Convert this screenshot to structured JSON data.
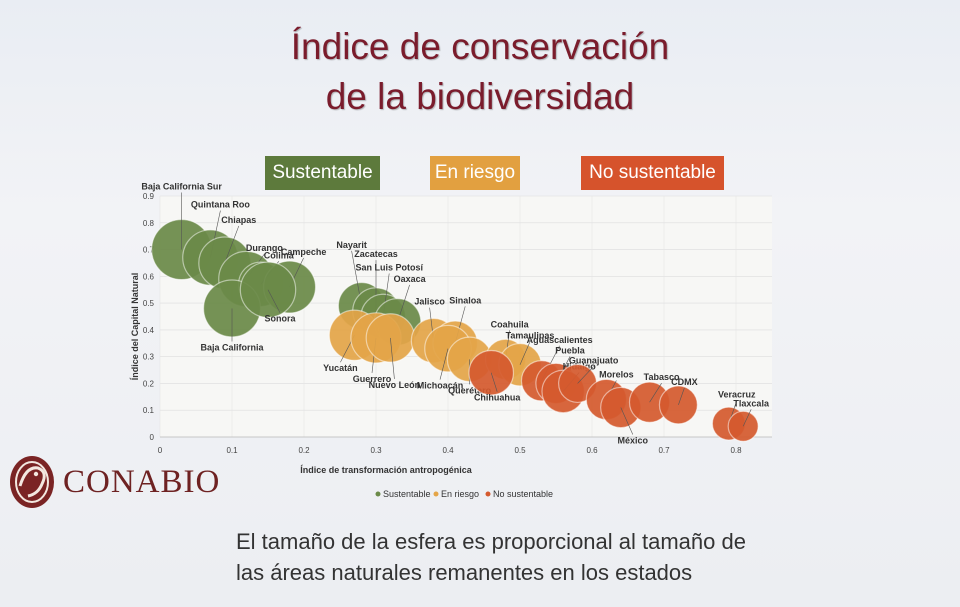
{
  "title": {
    "line1": "Índice de conservación",
    "line2": "de la biodiversidad"
  },
  "badges": [
    {
      "label": "Sustentable",
      "color": "#5d7a3c"
    },
    {
      "label": "En riesgo",
      "color": "#e2a040"
    },
    {
      "label": "No sustentable",
      "color": "#d6532c"
    }
  ],
  "caption": {
    "line1": "El tamaño de la esfera es proporcional al tamaño de",
    "line2": "las áreas naturales remanentes en los estados"
  },
  "logo": {
    "text": "CONABIO"
  },
  "chart_data": {
    "type": "scatter",
    "xlabel": "Índice de transformación antropogénica",
    "ylabel": "Índice del Capital Natural",
    "xlim": [
      0,
      0.85
    ],
    "ylim": [
      0,
      0.9
    ],
    "x_ticks": [
      "0",
      "0.1",
      "0.2",
      "0.3",
      "0.4",
      "0.5",
      "0.6",
      "0.7",
      "0.8"
    ],
    "y_ticks": [
      "0",
      "0.1",
      "0.2",
      "0.3",
      "0.4",
      "0.5",
      "0.6",
      "0.7",
      "0.8",
      "0.9"
    ],
    "legend": [
      "Sustentable",
      "En riesgo",
      "No sustentable"
    ],
    "colors": {
      "Sustentable": "#6b8a48",
      "En riesgo": "#e4a548",
      "No sustentable": "#d55a2e"
    },
    "points": [
      {
        "name": "Baja California Sur",
        "x": 0.03,
        "y": 0.7,
        "size": 1.0,
        "category": "Sustentable"
      },
      {
        "name": "Quintana Roo",
        "x": 0.07,
        "y": 0.67,
        "size": 0.85,
        "category": "Sustentable"
      },
      {
        "name": "Chiapas",
        "x": 0.09,
        "y": 0.65,
        "size": 0.75,
        "category": "Sustentable"
      },
      {
        "name": "Durango",
        "x": 0.12,
        "y": 0.59,
        "size": 0.85,
        "category": "Sustentable"
      },
      {
        "name": "Colima",
        "x": 0.14,
        "y": 0.57,
        "size": 0.55,
        "category": "Sustentable"
      },
      {
        "name": "Campeche",
        "x": 0.18,
        "y": 0.56,
        "size": 0.75,
        "category": "Sustentable"
      },
      {
        "name": "Baja California",
        "x": 0.1,
        "y": 0.48,
        "size": 0.9,
        "category": "Sustentable"
      },
      {
        "name": "Sonora",
        "x": 0.15,
        "y": 0.55,
        "size": 0.85,
        "category": "Sustentable"
      },
      {
        "name": "Nayarit",
        "x": 0.28,
        "y": 0.49,
        "size": 0.6,
        "category": "Sustentable"
      },
      {
        "name": "Zacatecas",
        "x": 0.3,
        "y": 0.47,
        "size": 0.6,
        "category": "Sustentable"
      },
      {
        "name": "San Luis Potosí",
        "x": 0.31,
        "y": 0.45,
        "size": 0.55,
        "category": "Sustentable"
      },
      {
        "name": "Oaxaca",
        "x": 0.33,
        "y": 0.43,
        "size": 0.6,
        "category": "Sustentable"
      },
      {
        "name": "Yucatán",
        "x": 0.27,
        "y": 0.38,
        "size": 0.7,
        "category": "En riesgo"
      },
      {
        "name": "Guerrero",
        "x": 0.3,
        "y": 0.37,
        "size": 0.7,
        "category": "En riesgo"
      },
      {
        "name": "Nuevo León",
        "x": 0.32,
        "y": 0.37,
        "size": 0.65,
        "category": "En riesgo"
      },
      {
        "name": "Jalisco",
        "x": 0.38,
        "y": 0.36,
        "size": 0.55,
        "category": "En riesgo"
      },
      {
        "name": "Sinaloa",
        "x": 0.41,
        "y": 0.35,
        "size": 0.55,
        "category": "En riesgo"
      },
      {
        "name": "Michoacán",
        "x": 0.4,
        "y": 0.33,
        "size": 0.6,
        "category": "En riesgo"
      },
      {
        "name": "Querétaro",
        "x": 0.43,
        "y": 0.29,
        "size": 0.55,
        "category": "En riesgo"
      },
      {
        "name": "Coahuila",
        "x": 0.48,
        "y": 0.29,
        "size": 0.45,
        "category": "En riesgo"
      },
      {
        "name": "Tamaulipas",
        "x": 0.5,
        "y": 0.27,
        "size": 0.5,
        "category": "En riesgo"
      },
      {
        "name": "Chihuahua",
        "x": 0.46,
        "y": 0.24,
        "size": 0.55,
        "category": "No sustentable"
      },
      {
        "name": "Aguascalientes",
        "x": 0.53,
        "y": 0.21,
        "size": 0.45,
        "category": "No sustentable"
      },
      {
        "name": "Puebla",
        "x": 0.55,
        "y": 0.2,
        "size": 0.45,
        "category": "No sustentable"
      },
      {
        "name": "Hidalgo",
        "x": 0.56,
        "y": 0.17,
        "size": 0.5,
        "category": "No sustentable"
      },
      {
        "name": "Guanajuato",
        "x": 0.58,
        "y": 0.2,
        "size": 0.4,
        "category": "No sustentable"
      },
      {
        "name": "Morelos",
        "x": 0.62,
        "y": 0.14,
        "size": 0.45,
        "category": "No sustentable"
      },
      {
        "name": "México",
        "x": 0.64,
        "y": 0.11,
        "size": 0.45,
        "category": "No sustentable"
      },
      {
        "name": "Tabasco",
        "x": 0.68,
        "y": 0.13,
        "size": 0.45,
        "category": "No sustentable"
      },
      {
        "name": "CDMX",
        "x": 0.72,
        "y": 0.12,
        "size": 0.4,
        "category": "No sustentable"
      },
      {
        "name": "Veracruz",
        "x": 0.79,
        "y": 0.05,
        "size": 0.3,
        "category": "No sustentable"
      },
      {
        "name": "Tlaxcala",
        "x": 0.81,
        "y": 0.04,
        "size": 0.25,
        "category": "No sustentable"
      }
    ]
  }
}
